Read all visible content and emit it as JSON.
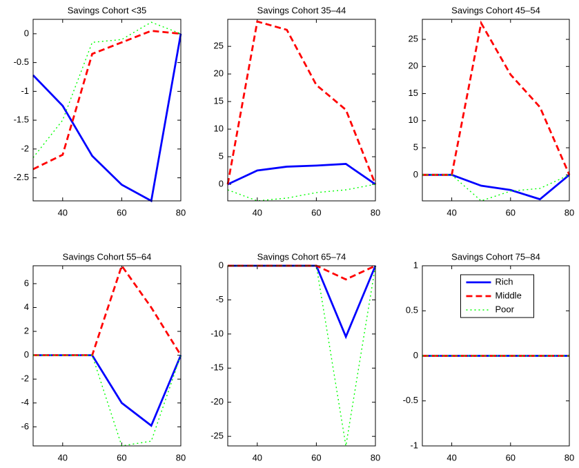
{
  "chart_data": [
    {
      "type": "line",
      "title": "Savings Cohort <35",
      "x": [
        30,
        40,
        50,
        60,
        70,
        80
      ],
      "xlim": [
        30,
        80
      ],
      "xticks": [
        40,
        60,
        80
      ],
      "ylim": [
        -2.9,
        0.25
      ],
      "yticks": [
        -2.5,
        -2,
        -1.5,
        -1,
        -0.5,
        0
      ],
      "series": [
        {
          "color": "#0000ff",
          "dash": "solid",
          "values": [
            -0.72,
            -1.25,
            -2.12,
            -2.62,
            -2.9,
            0
          ]
        },
        {
          "color": "#ff0000",
          "dash": "dashed",
          "values": [
            -2.35,
            -2.1,
            -0.35,
            -0.15,
            0.05,
            0
          ]
        },
        {
          "color": "#00ff00",
          "dash": "dotted",
          "values": [
            -2.15,
            -1.5,
            -0.15,
            -0.1,
            0.2,
            0
          ]
        }
      ]
    },
    {
      "type": "line",
      "title": "Savings Cohort 35–44",
      "x": [
        30,
        40,
        50,
        60,
        70,
        80
      ],
      "xlim": [
        30,
        80
      ],
      "xticks": [
        40,
        60,
        80
      ],
      "ylim": [
        -3,
        29.9
      ],
      "yticks": [
        0,
        5,
        10,
        15,
        20,
        25
      ],
      "series": [
        {
          "color": "#0000ff",
          "dash": "solid",
          "values": [
            0,
            2.5,
            3.2,
            3.4,
            3.7,
            0
          ]
        },
        {
          "color": "#ff0000",
          "dash": "dashed",
          "values": [
            0,
            29.5,
            28,
            18,
            13.5,
            0
          ]
        },
        {
          "color": "#00ff00",
          "dash": "dotted",
          "values": [
            -1,
            -3,
            -2.5,
            -1.5,
            -1,
            0
          ]
        }
      ]
    },
    {
      "type": "line",
      "title": "Savings Cohort 45–54",
      "x": [
        30,
        40,
        50,
        60,
        70,
        80
      ],
      "xlim": [
        30,
        80
      ],
      "xticks": [
        40,
        60,
        80
      ],
      "ylim": [
        -4.8,
        28.7
      ],
      "yticks": [
        0,
        5,
        10,
        15,
        20,
        25
      ],
      "series": [
        {
          "color": "#0000ff",
          "dash": "solid",
          "values": [
            0,
            0,
            -2,
            -2.8,
            -4.5,
            0
          ]
        },
        {
          "color": "#ff0000",
          "dash": "dashed",
          "values": [
            0,
            0,
            28,
            18.5,
            12.5,
            0
          ]
        },
        {
          "color": "#00ff00",
          "dash": "dotted",
          "values": [
            0,
            0,
            -4.8,
            -3,
            -2.5,
            0
          ]
        }
      ]
    },
    {
      "type": "line",
      "title": "Savings Cohort 55–64",
      "x": [
        30,
        40,
        50,
        60,
        70,
        80
      ],
      "xlim": [
        30,
        80
      ],
      "xticks": [
        40,
        60,
        80
      ],
      "ylim": [
        -7.6,
        7.5
      ],
      "yticks": [
        -6,
        -4,
        -2,
        0,
        2,
        4,
        6
      ],
      "series": [
        {
          "color": "#0000ff",
          "dash": "solid",
          "values": [
            0,
            0,
            0,
            -4,
            -5.9,
            0
          ]
        },
        {
          "color": "#ff0000",
          "dash": "dashed",
          "values": [
            0,
            0,
            0,
            7.5,
            4,
            0
          ]
        },
        {
          "color": "#00ff00",
          "dash": "dotted",
          "values": [
            0,
            0,
            0,
            -7.6,
            -7.2,
            0
          ]
        }
      ]
    },
    {
      "type": "line",
      "title": "Savings Cohort 65–74",
      "x": [
        30,
        40,
        50,
        60,
        70,
        80
      ],
      "xlim": [
        30,
        80
      ],
      "xticks": [
        40,
        60,
        80
      ],
      "ylim": [
        -26.4,
        0
      ],
      "yticks": [
        -25,
        -20,
        -15,
        -10,
        -5,
        0
      ],
      "series": [
        {
          "color": "#0000ff",
          "dash": "solid",
          "values": [
            0,
            0,
            0,
            0,
            -10.4,
            0
          ]
        },
        {
          "color": "#ff0000",
          "dash": "dashed",
          "values": [
            0,
            0,
            0,
            0,
            -2,
            0
          ]
        },
        {
          "color": "#00ff00",
          "dash": "dotted",
          "values": [
            0,
            0,
            0,
            0,
            -26.4,
            0
          ]
        }
      ]
    },
    {
      "type": "line",
      "title": "Savings Cohort 75–84",
      "x": [
        30,
        40,
        50,
        60,
        70,
        80
      ],
      "xlim": [
        30,
        80
      ],
      "xticks": [
        40,
        60,
        80
      ],
      "ylim": [
        -1,
        1
      ],
      "yticks": [
        -1,
        -0.5,
        0,
        0.5,
        1
      ],
      "legend": "top",
      "series": [
        {
          "name": "Rich",
          "color": "#0000ff",
          "dash": "solid",
          "values": [
            0,
            0,
            0,
            0,
            0,
            0
          ]
        },
        {
          "name": "Middle",
          "color": "#ff0000",
          "dash": "dashed",
          "values": [
            0,
            0,
            0,
            0,
            0,
            0
          ]
        },
        {
          "name": "Poor",
          "color": "#00ff00",
          "dash": "dotted",
          "values": [
            0,
            0,
            0,
            0,
            0,
            0
          ]
        }
      ]
    }
  ]
}
